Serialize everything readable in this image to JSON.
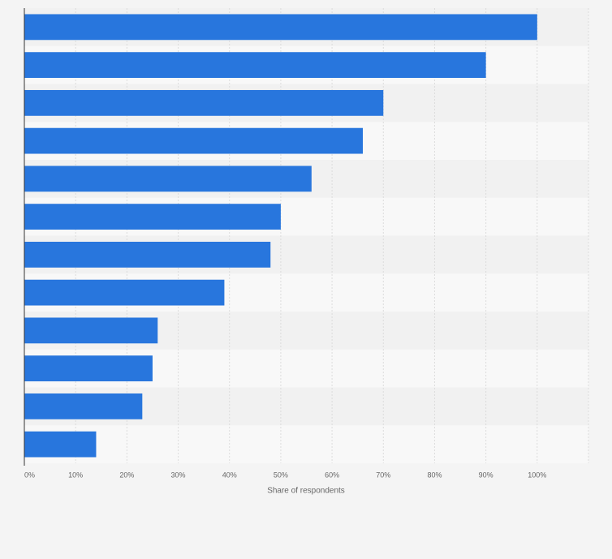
{
  "chart_data": {
    "type": "bar",
    "orientation": "horizontal",
    "x_label": "Share of respondents",
    "categories": [
      null,
      null,
      null,
      null,
      null,
      null,
      null,
      null,
      null,
      null,
      null,
      null
    ],
    "values": [
      100,
      90,
      70,
      66,
      56,
      50,
      48,
      39,
      26,
      25,
      23,
      14
    ],
    "color": "#2876dd",
    "xlim": [
      0,
      110
    ],
    "xticks": [
      {
        "value": 0,
        "label": "0%"
      },
      {
        "value": 10,
        "label": "10%"
      },
      {
        "value": 20,
        "label": "20%"
      },
      {
        "value": 30,
        "label": "30%"
      },
      {
        "value": 40,
        "label": "40%"
      },
      {
        "value": 50,
        "label": "50%"
      },
      {
        "value": 60,
        "label": "60%"
      },
      {
        "value": 70,
        "label": "70%"
      },
      {
        "value": 80,
        "label": "80%"
      },
      {
        "value": 90,
        "label": "90%"
      },
      {
        "value": 100,
        "label": "100%"
      }
    ],
    "grid": true
  }
}
